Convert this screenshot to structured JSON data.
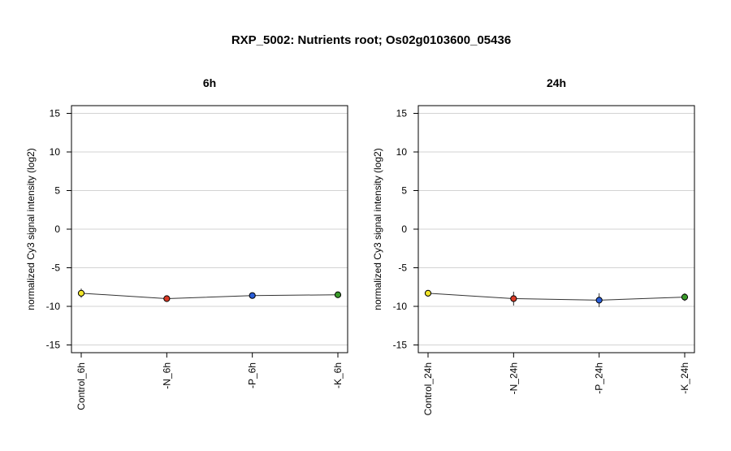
{
  "title": "RXP_5002: Nutrients root; Os02g0103600_05436",
  "chart_data": [
    {
      "type": "line",
      "title": "6h",
      "ylabel": "normalized Cy3 signal intensity (log2)",
      "ylim": [
        -16,
        16
      ],
      "yticks": [
        -15,
        -10,
        -5,
        0,
        5,
        10,
        15
      ],
      "grid": true,
      "categories": [
        "Control_6h",
        "-N_6h",
        "-P_6h",
        "-K_6h"
      ],
      "values": [
        -8.3,
        -9.0,
        -8.6,
        -8.5
      ],
      "error": [
        0.6,
        0.2,
        0.3,
        0.3
      ],
      "point_colors": [
        "#f2e52a",
        "#d93a26",
        "#2a5ed9",
        "#3a9a2a"
      ]
    },
    {
      "type": "line",
      "title": "24h",
      "ylabel": "normalized Cy3 signal intensity (log2)",
      "ylim": [
        -16,
        16
      ],
      "yticks": [
        -15,
        -10,
        -5,
        0,
        5,
        10,
        15
      ],
      "grid": true,
      "categories": [
        "Control_24h",
        "-N_24h",
        "-P_24h",
        "-K_24h"
      ],
      "values": [
        -8.3,
        -9.0,
        -9.2,
        -8.8
      ],
      "error": [
        0.3,
        0.9,
        0.9,
        0.5
      ],
      "point_colors": [
        "#f2e52a",
        "#d93a26",
        "#2a5ed9",
        "#3a9a2a"
      ]
    }
  ]
}
